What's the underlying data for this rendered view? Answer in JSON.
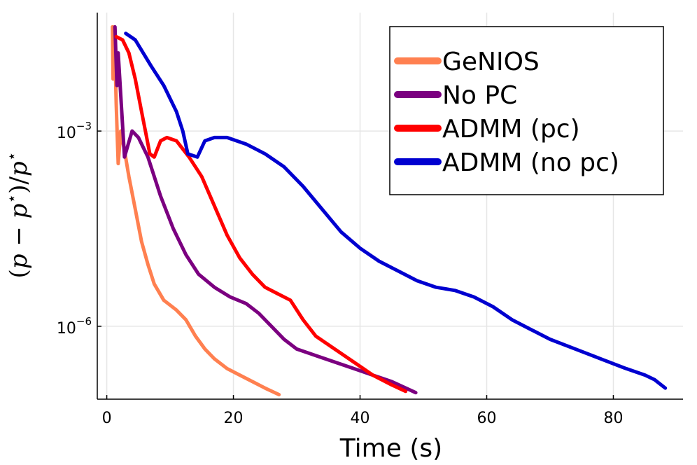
{
  "chart_data": {
    "type": "line",
    "xlabel": "Time (s)",
    "ylabel": "(p − p⋆)/p⋆",
    "ylabel_parts": {
      "open": "(",
      "p1": "p",
      "minus": " − ",
      "p2": "p",
      "star": "⋆",
      "close": ")/",
      "p3": "p"
    },
    "yscale": "log10",
    "xlim": [
      -1.5,
      91
    ],
    "ylim_log10": [
      -7.12,
      -1.18
    ],
    "xticks": [
      0,
      20,
      40,
      60,
      80
    ],
    "xtick_labels": [
      "0",
      "20",
      "40",
      "60",
      "80"
    ],
    "yticks_log10": [
      -3,
      -6
    ],
    "ytick_labels": [
      {
        "base": "10",
        "exp": "−3"
      },
      {
        "base": "10",
        "exp": "−6"
      }
    ],
    "grid": true,
    "legend_position": "top-right",
    "series": [
      {
        "name": "GeNIOS",
        "color": "#ff8050",
        "points": [
          [
            0.9,
            -1.4
          ],
          [
            1.0,
            -2.2
          ],
          [
            1.2,
            -1.4
          ],
          [
            1.5,
            -2.6
          ],
          [
            1.8,
            -3.5
          ],
          [
            2.2,
            -3.0
          ],
          [
            2.8,
            -3.3
          ],
          [
            3.5,
            -3.7
          ],
          [
            4.5,
            -4.2
          ],
          [
            5.5,
            -4.7
          ],
          [
            6.5,
            -5.05
          ],
          [
            7.5,
            -5.35
          ],
          [
            9,
            -5.6
          ],
          [
            11,
            -5.75
          ],
          [
            12.5,
            -5.9
          ],
          [
            14,
            -6.15
          ],
          [
            15.5,
            -6.35
          ],
          [
            17,
            -6.5
          ],
          [
            19,
            -6.65
          ],
          [
            21,
            -6.75
          ],
          [
            23,
            -6.85
          ],
          [
            25,
            -6.95
          ],
          [
            27.2,
            -7.05
          ]
        ]
      },
      {
        "name": "No PC",
        "color": "#7b0080",
        "points": [
          [
            1.3,
            -1.4
          ],
          [
            1.6,
            -2.3
          ],
          [
            1.8,
            -1.8
          ],
          [
            2.3,
            -2.6
          ],
          [
            2.8,
            -3.4
          ],
          [
            3.4,
            -3.2
          ],
          [
            4.0,
            -3.0
          ],
          [
            5,
            -3.1
          ],
          [
            6.5,
            -3.4
          ],
          [
            8.5,
            -4.0
          ],
          [
            10.5,
            -4.5
          ],
          [
            12.5,
            -4.9
          ],
          [
            14.5,
            -5.2
          ],
          [
            17,
            -5.4
          ],
          [
            19.5,
            -5.55
          ],
          [
            22,
            -5.65
          ],
          [
            24,
            -5.8
          ],
          [
            26,
            -6.0
          ],
          [
            28,
            -6.2
          ],
          [
            30,
            -6.35
          ],
          [
            33,
            -6.45
          ],
          [
            36,
            -6.55
          ],
          [
            39,
            -6.65
          ],
          [
            42,
            -6.75
          ],
          [
            45,
            -6.85
          ],
          [
            48.8,
            -7.02
          ]
        ]
      },
      {
        "name": "ADMM (pc)",
        "color": "#ff0000",
        "points": [
          [
            1.5,
            -1.55
          ],
          [
            2.5,
            -1.6
          ],
          [
            3.5,
            -1.8
          ],
          [
            4.5,
            -2.2
          ],
          [
            5.5,
            -2.7
          ],
          [
            6.3,
            -3.1
          ],
          [
            6.8,
            -3.35
          ],
          [
            7.5,
            -3.4
          ],
          [
            8.5,
            -3.15
          ],
          [
            9.5,
            -3.1
          ],
          [
            11,
            -3.15
          ],
          [
            13,
            -3.4
          ],
          [
            15,
            -3.7
          ],
          [
            17,
            -4.15
          ],
          [
            19,
            -4.6
          ],
          [
            21,
            -4.95
          ],
          [
            23,
            -5.2
          ],
          [
            25,
            -5.4
          ],
          [
            27,
            -5.5
          ],
          [
            29,
            -5.6
          ],
          [
            31,
            -5.9
          ],
          [
            33,
            -6.15
          ],
          [
            36,
            -6.35
          ],
          [
            39,
            -6.55
          ],
          [
            42,
            -6.75
          ],
          [
            45,
            -6.9
          ],
          [
            47.2,
            -7.0
          ]
        ]
      },
      {
        "name": "ADMM (no pc)",
        "color": "#0000d0",
        "points": [
          [
            3.0,
            -1.5
          ],
          [
            4.5,
            -1.6
          ],
          [
            7,
            -2.0
          ],
          [
            9,
            -2.3
          ],
          [
            11,
            -2.7
          ],
          [
            12,
            -3.0
          ],
          [
            12.8,
            -3.35
          ],
          [
            14.3,
            -3.4
          ],
          [
            15.5,
            -3.15
          ],
          [
            17,
            -3.1
          ],
          [
            19,
            -3.1
          ],
          [
            22,
            -3.2
          ],
          [
            25,
            -3.35
          ],
          [
            28,
            -3.55
          ],
          [
            31,
            -3.85
          ],
          [
            34,
            -4.2
          ],
          [
            37,
            -4.55
          ],
          [
            40,
            -4.8
          ],
          [
            43,
            -5.0
          ],
          [
            46,
            -5.15
          ],
          [
            49,
            -5.3
          ],
          [
            52,
            -5.4
          ],
          [
            55,
            -5.45
          ],
          [
            58,
            -5.55
          ],
          [
            61,
            -5.7
          ],
          [
            64,
            -5.9
          ],
          [
            67,
            -6.05
          ],
          [
            70,
            -6.2
          ],
          [
            74,
            -6.35
          ],
          [
            78,
            -6.5
          ],
          [
            82,
            -6.65
          ],
          [
            85,
            -6.75
          ],
          [
            86.5,
            -6.82
          ],
          [
            88.2,
            -6.95
          ]
        ]
      }
    ]
  }
}
